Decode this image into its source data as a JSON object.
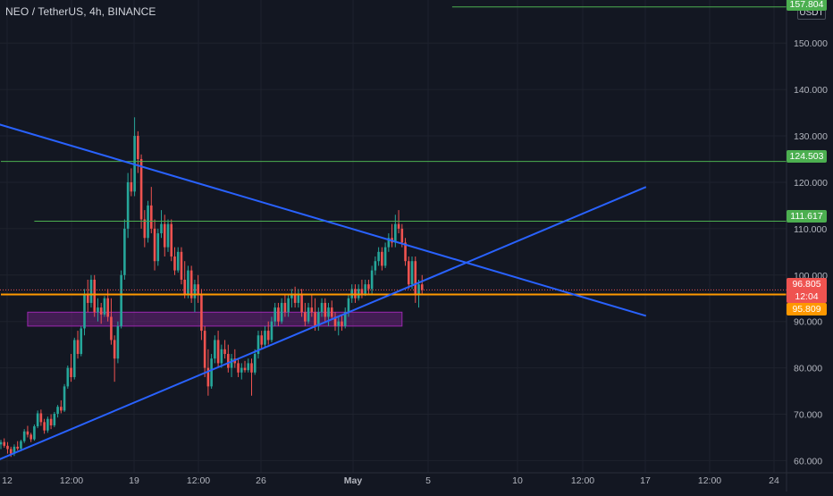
{
  "header": {
    "title": "NEO / TetherUS, 4h, BINANCE",
    "unit": "USDT"
  },
  "colors": {
    "background": "#131722",
    "grid": "#1e222d",
    "axis_text": "#b2b5be",
    "up": "#26a69a",
    "down": "#ef5350",
    "trendline": "#2962ff",
    "level": "#4caf50",
    "support": "#ff9800",
    "zone": "#9c27b0"
  },
  "badges": {
    "top_level": "157.804",
    "level_1": "124.503",
    "level_2": "111.617",
    "last_price": "96.805",
    "countdown": "12:04",
    "support": "95.809"
  },
  "chart_data": {
    "type": "candlestick",
    "title": "NEO / TetherUS, 4h, BINANCE",
    "y_unit": "USDT",
    "ylim": [
      57,
      159
    ],
    "y_ticks": [
      60,
      70,
      80,
      90,
      100,
      110,
      120,
      130,
      140,
      150
    ],
    "y_tick_labels": [
      "60.000",
      "70.000",
      "80.000",
      "90.000",
      "100.000",
      "110.000",
      "120.000",
      "130.000",
      "140.000",
      "150.000"
    ],
    "x_tick_labels": [
      "12",
      "12:00",
      "19",
      "12:00",
      "26",
      "May",
      "5",
      "10",
      "12:00",
      "17",
      "12:00",
      "24"
    ],
    "grid": true,
    "horizontal_levels": [
      {
        "value": 157.804,
        "label": "157.804",
        "from_bar": 135
      },
      {
        "value": 124.503,
        "label": "124.503",
        "from_bar": 0
      },
      {
        "value": 111.617,
        "label": "111.617",
        "from_bar": 10
      },
      {
        "value": 95.809,
        "label": "95.809",
        "from_bar": 0
      }
    ],
    "last_price": {
      "value": 96.805,
      "label": "96.805",
      "countdown": "12:04"
    },
    "zones": [
      {
        "from_bar": 8,
        "to_bar": 120,
        "low": 89,
        "high": 92
      }
    ],
    "trendlines": [
      {
        "name": "resistance",
        "points": [
          [
            -2,
            132.8
          ],
          [
            193,
            91.2
          ]
        ]
      },
      {
        "name": "support",
        "points": [
          [
            -2,
            59.8
          ],
          [
            193,
            119
          ]
        ]
      }
    ],
    "candles": [
      [
        63.5,
        64.5,
        62.5,
        64.0
      ],
      [
        64.0,
        64.8,
        62.8,
        63.2
      ],
      [
        63.2,
        64.0,
        61.5,
        62.5
      ],
      [
        62.5,
        63.0,
        60.8,
        61.5
      ],
      [
        61.5,
        63.5,
        61.0,
        63.0
      ],
      [
        63.0,
        64.2,
        62.2,
        62.6
      ],
      [
        62.6,
        64.5,
        62.0,
        64.2
      ],
      [
        64.2,
        66.8,
        63.8,
        66.3
      ],
      [
        66.3,
        67.5,
        65.0,
        65.6
      ],
      [
        65.6,
        66.0,
        64.0,
        64.6
      ],
      [
        64.6,
        67.8,
        64.3,
        67.4
      ],
      [
        67.4,
        70.8,
        67.0,
        70.2
      ],
      [
        70.2,
        71.0,
        67.5,
        68.3
      ],
      [
        68.3,
        69.0,
        65.8,
        66.5
      ],
      [
        66.5,
        69.5,
        66.0,
        69.0
      ],
      [
        69.0,
        70.0,
        66.8,
        67.6
      ],
      [
        67.6,
        70.5,
        67.2,
        70.1
      ],
      [
        70.1,
        72.0,
        69.3,
        71.6
      ],
      [
        71.6,
        73.0,
        70.2,
        70.8
      ],
      [
        70.8,
        76.5,
        70.5,
        76.0
      ],
      [
        76.0,
        80.5,
        75.5,
        80.0
      ],
      [
        80.0,
        83.0,
        77.0,
        78.0
      ],
      [
        78.0,
        86.5,
        77.5,
        86.0
      ],
      [
        86.0,
        88.0,
        82.0,
        83.0
      ],
      [
        83.0,
        89.0,
        82.5,
        88.5
      ],
      [
        88.5,
        97.0,
        87.0,
        96.0
      ],
      [
        96.0,
        99.0,
        92.0,
        94.0
      ],
      [
        94.0,
        100.0,
        93.0,
        99.0
      ],
      [
        99.0,
        100.0,
        91.0,
        92.0
      ],
      [
        92.0,
        95.0,
        90.0,
        93.0
      ],
      [
        93.0,
        94.0,
        89.5,
        91.5
      ],
      [
        91.5,
        95.5,
        91.0,
        95.0
      ],
      [
        95.0,
        97.0,
        90.0,
        91.0
      ],
      [
        91.0,
        95.0,
        85.0,
        86.0
      ],
      [
        86.0,
        87.0,
        77.0,
        82.0
      ],
      [
        82.0,
        90.0,
        81.0,
        89.0
      ],
      [
        89.0,
        101.0,
        88.5,
        100.0
      ],
      [
        100.0,
        112.0,
        99.0,
        110.0
      ],
      [
        110.0,
        122.0,
        108.0,
        120.0
      ],
      [
        120.0,
        123.0,
        117.0,
        118.0
      ],
      [
        118.0,
        134.0,
        117.0,
        130.0
      ],
      [
        130.0,
        131.0,
        122.0,
        125.0
      ],
      [
        125.0,
        126.0,
        110.0,
        112.0
      ],
      [
        112.0,
        114.0,
        106.0,
        108.0
      ],
      [
        108.0,
        116.0,
        107.0,
        115.0
      ],
      [
        115.0,
        119.0,
        109.0,
        110.0
      ],
      [
        110.0,
        112.0,
        101.0,
        103.0
      ],
      [
        103.0,
        110.0,
        102.0,
        109.0
      ],
      [
        109.0,
        114.0,
        108.0,
        111.0
      ],
      [
        111.0,
        113.0,
        104.0,
        106.0
      ],
      [
        106.0,
        112.0,
        105.0,
        111.0
      ],
      [
        111.0,
        112.0,
        103.0,
        104.0
      ],
      [
        104.0,
        106.0,
        100.0,
        101.0
      ],
      [
        101.0,
        106.0,
        100.5,
        105.0
      ],
      [
        105.0,
        106.0,
        98.0,
        99.0
      ],
      [
        99.0,
        103.0,
        95.0,
        96.0
      ],
      [
        96.0,
        102.0,
        95.0,
        101.0
      ],
      [
        101.0,
        102.0,
        94.0,
        95.0
      ],
      [
        95.0,
        99.0,
        92.0,
        98.0
      ],
      [
        98.0,
        100.0,
        94.0,
        96.0
      ],
      [
        96.0,
        97.0,
        86.0,
        88.0
      ],
      [
        88.0,
        89.0,
        78.0,
        80.0
      ],
      [
        80.0,
        84.0,
        74.0,
        76.0
      ],
      [
        76.0,
        83.0,
        75.5,
        82.0
      ],
      [
        82.0,
        87.0,
        81.0,
        86.0
      ],
      [
        86.0,
        88.0,
        80.0,
        81.0
      ],
      [
        81.0,
        85.0,
        80.0,
        84.0
      ],
      [
        84.0,
        86.0,
        82.0,
        83.0
      ],
      [
        83.0,
        85.0,
        79.0,
        80.0
      ],
      [
        80.0,
        83.0,
        78.0,
        82.0
      ],
      [
        82.0,
        84.0,
        80.0,
        81.0
      ],
      [
        81.0,
        82.0,
        78.0,
        79.0
      ],
      [
        79.0,
        81.0,
        77.5,
        80.0
      ],
      [
        80.0,
        81.5,
        79.0,
        79.5
      ],
      [
        79.5,
        82.0,
        79.0,
        81.0
      ],
      [
        81.0,
        82.0,
        74.0,
        79.0
      ],
      [
        79.0,
        84.0,
        78.5,
        83.0
      ],
      [
        83.0,
        88.0,
        82.0,
        87.0
      ],
      [
        87.0,
        88.0,
        84.0,
        85.0
      ],
      [
        85.0,
        89.0,
        84.5,
        88.0
      ],
      [
        88.0,
        90.0,
        85.0,
        86.0
      ],
      [
        86.0,
        91.0,
        85.5,
        90.0
      ],
      [
        90.0,
        94.0,
        89.0,
        93.0
      ],
      [
        93.0,
        94.0,
        89.0,
        90.0
      ],
      [
        90.0,
        95.0,
        89.5,
        94.0
      ],
      [
        94.0,
        96.0,
        91.0,
        92.0
      ],
      [
        92.0,
        96.0,
        91.0,
        95.0
      ],
      [
        95.0,
        97.0,
        93.0,
        96.0
      ],
      [
        96.0,
        97.5,
        93.0,
        94.0
      ],
      [
        94.0,
        97.0,
        93.0,
        96.0
      ],
      [
        96.0,
        97.0,
        91.0,
        92.0
      ],
      [
        92.0,
        94.0,
        89.0,
        90.0
      ],
      [
        90.0,
        94.0,
        89.5,
        93.0
      ],
      [
        93.0,
        96.0,
        91.0,
        92.0
      ],
      [
        92.0,
        95.0,
        88.0,
        89.0
      ],
      [
        89.0,
        93.0,
        88.0,
        92.0
      ],
      [
        92.0,
        95.0,
        91.0,
        94.0
      ],
      [
        94.0,
        95.0,
        90.0,
        91.0
      ],
      [
        91.0,
        94.0,
        89.0,
        93.0
      ],
      [
        93.0,
        94.5,
        90.5,
        91.0
      ],
      [
        91.0,
        92.0,
        88.0,
        89.0
      ],
      [
        89.0,
        91.0,
        87.0,
        90.0
      ],
      [
        90.0,
        91.5,
        88.0,
        89.0
      ],
      [
        89.0,
        93.0,
        88.5,
        92.0
      ],
      [
        92.0,
        96.0,
        91.0,
        95.0
      ],
      [
        95.0,
        98.0,
        94.0,
        97.0
      ],
      [
        97.0,
        98.0,
        94.0,
        95.0
      ],
      [
        95.0,
        98.0,
        94.5,
        97.0
      ],
      [
        97.0,
        99.0,
        95.0,
        96.0
      ],
      [
        96.0,
        99.0,
        95.5,
        98.0
      ],
      [
        98.0,
        99.0,
        96.0,
        97.0
      ],
      [
        97.0,
        102.0,
        96.0,
        101.0
      ],
      [
        101.0,
        104.0,
        100.0,
        103.0
      ],
      [
        103.0,
        106.0,
        102.0,
        105.0
      ],
      [
        105.0,
        106.0,
        101.0,
        102.0
      ],
      [
        102.0,
        107.0,
        101.5,
        106.0
      ],
      [
        106.0,
        109.0,
        105.0,
        108.0
      ],
      [
        108.0,
        111.0,
        106.0,
        107.0
      ],
      [
        107.0,
        113.0,
        106.0,
        111.0
      ],
      [
        111.0,
        114.0,
        109.0,
        110.0
      ],
      [
        110.0,
        111.0,
        106.0,
        107.0
      ],
      [
        107.0,
        108.0,
        102.0,
        103.0
      ],
      [
        103.0,
        104.0,
        97.0,
        98.0
      ],
      [
        98.0,
        104.0,
        97.0,
        103.0
      ],
      [
        103.0,
        104.0,
        94.0,
        96.0
      ],
      [
        96.0,
        99.0,
        93.0,
        98.0
      ],
      [
        98.0,
        100.0,
        96.0,
        96.8
      ]
    ]
  }
}
